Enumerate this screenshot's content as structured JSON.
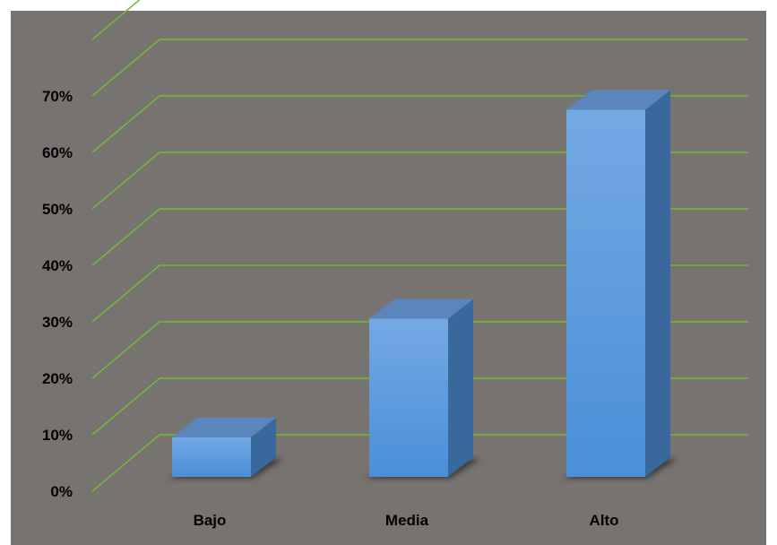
{
  "chart_data": {
    "type": "bar",
    "style": "3d-column",
    "categories": [
      "Bajo",
      "Media",
      "Alto"
    ],
    "values": [
      7,
      28,
      65
    ],
    "ylim": [
      0,
      80
    ],
    "ytick_step": 10,
    "ytick_format": "{v}%",
    "grid": true,
    "legend": "none",
    "title": "",
    "xlabel": "",
    "ylabel": ""
  },
  "colors": {
    "plot_background": "#777370",
    "gridline": "#74ba34",
    "bar_front_top": "#73a9e3",
    "bar_front_bottom": "#4a8fd8",
    "bar_side": "#39689c",
    "bar_top": "#5a86bd",
    "bar_shadow": "#2f2c2a",
    "text": "#000000"
  }
}
